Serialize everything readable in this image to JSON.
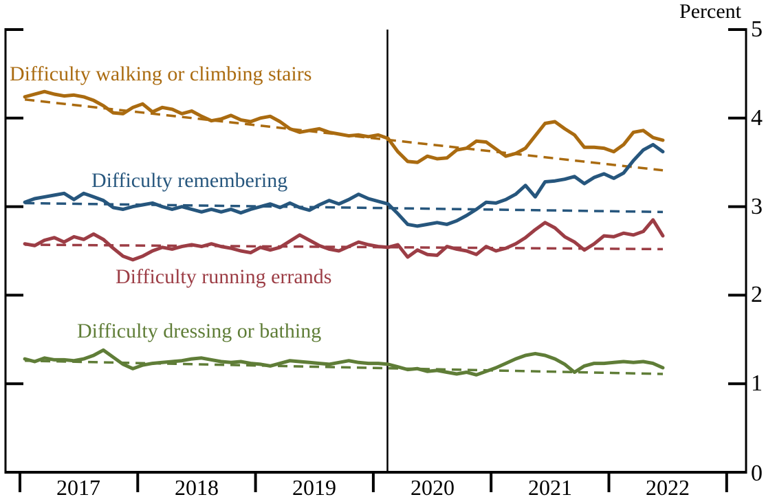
{
  "chart_data": {
    "type": "line",
    "unit_label": "Percent",
    "x_tick_years": [
      "2017",
      "2018",
      "2019",
      "2020",
      "2021",
      "2022"
    ],
    "y_ticks": [
      "5",
      "4",
      "3",
      "2",
      "1",
      "0"
    ],
    "ylim": [
      0,
      5
    ],
    "x_range": {
      "start": "2017-01",
      "end": "2022-06",
      "frequency": "monthly",
      "points": 66
    },
    "grid": false,
    "legend_position": "inline-colored-labels",
    "vertical_line": {
      "date": "2020-02",
      "color": "#000000"
    },
    "series": [
      {
        "name": "Difficulty walking or climbing stairs",
        "color": "#AA6B10",
        "trend": [
          4.21,
          3.41
        ],
        "values": [
          4.24,
          4.27,
          4.3,
          4.27,
          4.25,
          4.26,
          4.24,
          4.2,
          4.14,
          4.06,
          4.05,
          4.12,
          4.16,
          4.07,
          4.12,
          4.1,
          4.05,
          4.08,
          4.02,
          3.97,
          3.99,
          4.03,
          3.98,
          3.96,
          4.0,
          4.02,
          3.96,
          3.88,
          3.84,
          3.86,
          3.88,
          3.84,
          3.82,
          3.8,
          3.81,
          3.79,
          3.81,
          3.77,
          3.62,
          3.51,
          3.5,
          3.57,
          3.54,
          3.55,
          3.64,
          3.66,
          3.74,
          3.73,
          3.65,
          3.57,
          3.6,
          3.66,
          3.8,
          3.94,
          3.96,
          3.88,
          3.81,
          3.67,
          3.67,
          3.66,
          3.62,
          3.7,
          3.84,
          3.86,
          3.78,
          3.75
        ]
      },
      {
        "name": "Difficulty remembering",
        "color": "#26567D",
        "trend": [
          3.04,
          2.94
        ],
        "values": [
          3.05,
          3.09,
          3.11,
          3.13,
          3.15,
          3.08,
          3.15,
          3.11,
          3.07,
          2.99,
          2.97,
          3.0,
          3.02,
          3.04,
          3.0,
          2.97,
          3.0,
          2.97,
          2.94,
          2.97,
          2.94,
          2.97,
          2.93,
          2.97,
          3.0,
          3.03,
          2.99,
          3.04,
          2.99,
          2.96,
          3.02,
          3.07,
          3.03,
          3.08,
          3.14,
          3.09,
          3.06,
          3.03,
          2.92,
          2.8,
          2.78,
          2.8,
          2.82,
          2.8,
          2.84,
          2.9,
          2.97,
          3.05,
          3.04,
          3.08,
          3.14,
          3.24,
          3.11,
          3.28,
          3.29,
          3.31,
          3.34,
          3.26,
          3.33,
          3.37,
          3.32,
          3.38,
          3.52,
          3.64,
          3.7,
          3.62
        ]
      },
      {
        "name": "Difficulty running errands",
        "color": "#9C3D45",
        "trend": [
          2.57,
          2.52
        ],
        "values": [
          2.58,
          2.56,
          2.62,
          2.65,
          2.6,
          2.66,
          2.63,
          2.69,
          2.63,
          2.53,
          2.44,
          2.4,
          2.44,
          2.5,
          2.54,
          2.52,
          2.55,
          2.57,
          2.55,
          2.58,
          2.55,
          2.53,
          2.5,
          2.48,
          2.54,
          2.51,
          2.54,
          2.61,
          2.68,
          2.62,
          2.56,
          2.52,
          2.5,
          2.55,
          2.6,
          2.57,
          2.55,
          2.54,
          2.57,
          2.43,
          2.51,
          2.46,
          2.45,
          2.55,
          2.52,
          2.5,
          2.46,
          2.55,
          2.5,
          2.53,
          2.58,
          2.65,
          2.74,
          2.82,
          2.76,
          2.66,
          2.6,
          2.51,
          2.58,
          2.67,
          2.66,
          2.7,
          2.68,
          2.72,
          2.85,
          2.67
        ]
      },
      {
        "name": "Difficulty dressing or bathing",
        "color": "#5F7D37",
        "trend": [
          1.26,
          1.11
        ],
        "values": [
          1.28,
          1.25,
          1.29,
          1.27,
          1.27,
          1.26,
          1.28,
          1.32,
          1.38,
          1.3,
          1.22,
          1.17,
          1.21,
          1.23,
          1.24,
          1.25,
          1.26,
          1.28,
          1.29,
          1.27,
          1.25,
          1.24,
          1.25,
          1.23,
          1.22,
          1.2,
          1.23,
          1.26,
          1.25,
          1.24,
          1.23,
          1.22,
          1.24,
          1.26,
          1.24,
          1.23,
          1.23,
          1.22,
          1.19,
          1.16,
          1.17,
          1.14,
          1.15,
          1.13,
          1.11,
          1.13,
          1.1,
          1.14,
          1.18,
          1.23,
          1.28,
          1.32,
          1.34,
          1.32,
          1.28,
          1.22,
          1.13,
          1.2,
          1.23,
          1.23,
          1.24,
          1.25,
          1.24,
          1.25,
          1.23,
          1.18
        ]
      }
    ]
  }
}
